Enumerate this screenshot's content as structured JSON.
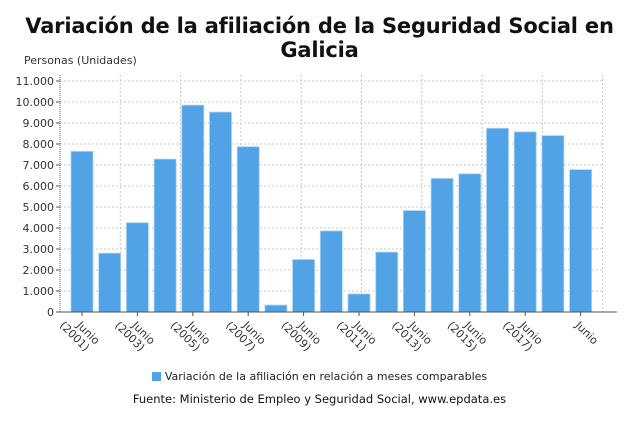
{
  "chart_data": {
    "type": "bar",
    "title": "Variación de la afiliación de la Seguridad Social en Galicia",
    "ylabel": "Personas (Unidades)",
    "xlabel": "",
    "categories": [
      "Junio (2001)",
      "",
      "Junio (2003)",
      "",
      "Junio (2005)",
      "",
      "Junio (2007)",
      "",
      "Junio (2009)",
      "",
      "Junio (2011)",
      "",
      "Junio (2013)",
      "",
      "Junio (2015)",
      "",
      "Junio (2017)",
      "",
      "Junio"
    ],
    "tick_labels": [
      [
        "Junio",
        "(2001)"
      ],
      [
        "Junio",
        "(2003)"
      ],
      [
        "Junio",
        "(2005)"
      ],
      [
        "Junio",
        "(2007)"
      ],
      [
        "Junio",
        "(2009)"
      ],
      [
        "Junio",
        "(2011)"
      ],
      [
        "Junio",
        "(2013)"
      ],
      [
        "Junio",
        "(2015)"
      ],
      [
        "Junio",
        "(2017)"
      ],
      [
        "Junio",
        ""
      ]
    ],
    "series": [
      {
        "name": "Variación de la afiliación en relación a meses comparables",
        "color": "#52a3e6",
        "values": [
          7650,
          2800,
          4250,
          7280,
          9850,
          9520,
          7870,
          330,
          2500,
          3860,
          860,
          2850,
          4830,
          6360,
          6580,
          8750,
          8580,
          8400,
          6780
        ]
      }
    ],
    "ylim": [
      0,
      11000
    ],
    "yticks": [
      "0",
      "1.000",
      "2.000",
      "3.000",
      "4.000",
      "5.000",
      "6.000",
      "7.000",
      "8.000",
      "9.000",
      "10.000",
      "11.000"
    ],
    "grid": true,
    "legend_placement": "bottom"
  },
  "source": "Fuente: Ministerio de Empleo y Seguridad Social, www.epdata.es"
}
